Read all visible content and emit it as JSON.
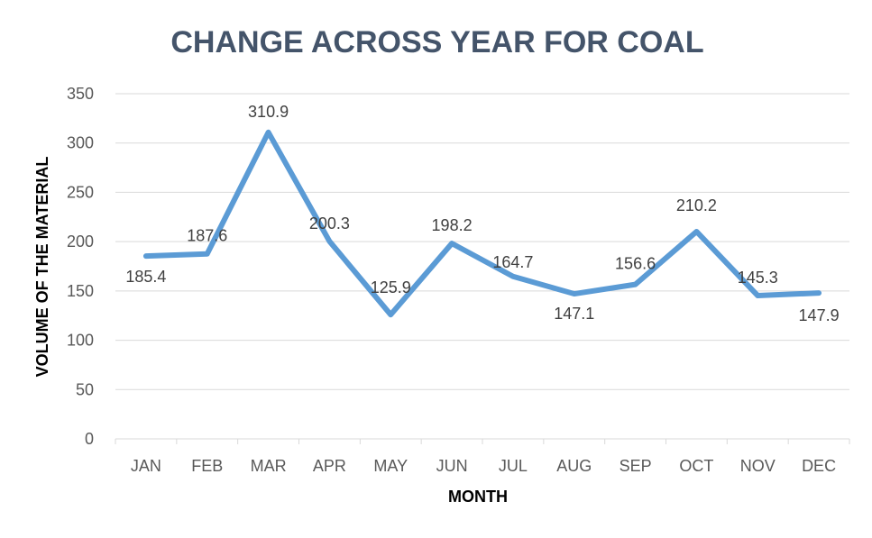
{
  "chart_data": {
    "type": "line",
    "title": "CHANGE ACROSS YEAR FOR COAL",
    "xlabel": "MONTH",
    "ylabel": "VOLUME OF THE MATERIAL",
    "categories": [
      "JAN",
      "FEB",
      "MAR",
      "APR",
      "MAY",
      "JUN",
      "JUL",
      "AUG",
      "SEP",
      "OCT",
      "NOV",
      "DEC"
    ],
    "series": [
      {
        "values": [
          185.4,
          187.6,
          310.9,
          200.3,
          125.9,
          198.2,
          164.7,
          147.1,
          156.6,
          210.2,
          145.3,
          147.9
        ],
        "color": "#5b9bd5",
        "data_labels": [
          "185.4",
          "187.6",
          "310.9",
          "200.3",
          "125.9",
          "198.2",
          "164.7",
          "147.1",
          "156.6",
          "210.2",
          "145.3",
          "147.9"
        ]
      }
    ],
    "ylim": [
      0,
      350
    ],
    "yticks": [
      0,
      50,
      100,
      150,
      200,
      250,
      300,
      350
    ],
    "ytick_labels": [
      "0",
      "50",
      "100",
      "150",
      "200",
      "250",
      "300",
      "350"
    ],
    "grid": "horizontal",
    "legend": "none"
  }
}
